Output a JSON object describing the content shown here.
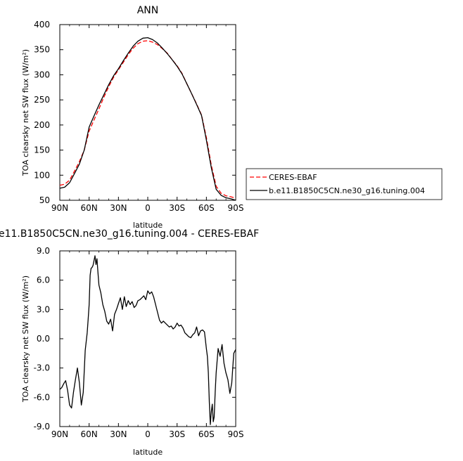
{
  "chart_data": [
    {
      "type": "line",
      "title": "ANN",
      "xlabel": "latitude",
      "ylabel": "TOA clearsky net SW flux (W/m²)",
      "xlim": [
        -90,
        90
      ],
      "ylim": [
        50,
        400
      ],
      "xticks": [
        -90,
        -60,
        -30,
        0,
        30,
        60,
        90
      ],
      "xtick_labels": [
        "90N",
        "60N",
        "30N",
        "0",
        "30S",
        "60S",
        "90S"
      ],
      "yticks": [
        50,
        100,
        150,
        200,
        250,
        300,
        350,
        400
      ],
      "ytick_labels": [
        "50",
        "100",
        "150",
        "200",
        "250",
        "300",
        "350",
        "400"
      ],
      "legend_position": "outside-right",
      "series": [
        {
          "name": "CERES-EBAF",
          "color": "#ff0000",
          "dash": true,
          "x": [
            -90,
            -85,
            -80,
            -75,
            -70,
            -65,
            -60,
            -55,
            -50,
            -45,
            -40,
            -35,
            -30,
            -25,
            -20,
            -15,
            -10,
            -5,
            0,
            5,
            10,
            15,
            20,
            25,
            30,
            35,
            40,
            45,
            50,
            55,
            60,
            65,
            70,
            75,
            80,
            85,
            90
          ],
          "y": [
            80,
            82,
            90,
            108,
            127,
            150,
            188,
            210,
            232,
            255,
            276,
            295,
            310,
            325,
            340,
            353,
            362,
            367,
            368,
            365,
            360,
            352,
            343,
            330,
            318,
            303,
            282,
            262,
            242,
            220,
            175,
            120,
            78,
            64,
            59,
            57,
            54
          ]
        },
        {
          "name": "b.e11.B1850C5CN.ne30_g16.tuning.004",
          "color": "#000000",
          "dash": false,
          "x": [
            -90,
            -85,
            -80,
            -75,
            -70,
            -65,
            -60,
            -55,
            -50,
            -45,
            -40,
            -35,
            -30,
            -25,
            -20,
            -15,
            -10,
            -5,
            0,
            5,
            10,
            15,
            20,
            25,
            30,
            35,
            40,
            45,
            50,
            55,
            60,
            65,
            70,
            75,
            80,
            85,
            90
          ],
          "y": [
            74,
            76,
            85,
            103,
            122,
            150,
            196,
            218,
            240,
            260,
            280,
            298,
            312,
            328,
            343,
            357,
            367,
            373,
            374,
            370,
            363,
            353,
            342,
            330,
            317,
            302,
            282,
            262,
            241,
            219,
            170,
            115,
            72,
            60,
            55,
            53,
            50
          ]
        }
      ]
    },
    {
      "type": "line",
      "title": "e11.B1850C5CN.ne30_g16.tuning.004 - CERES-EBAF",
      "xlabel": "latitude",
      "ylabel": "TOA clearsky net SW flux (W/m²)",
      "xlim": [
        -90,
        90
      ],
      "ylim": [
        -9,
        9
      ],
      "xticks": [
        -90,
        -60,
        -30,
        0,
        30,
        60,
        90
      ],
      "xtick_labels": [
        "90N",
        "60N",
        "30N",
        "0",
        "30S",
        "60S",
        "90S"
      ],
      "yticks": [
        -9,
        -6,
        -3,
        0,
        3,
        6,
        9
      ],
      "ytick_labels": [
        "-9.0",
        "-6.0",
        "-3.0",
        "0.0",
        "3.0",
        "6.0",
        "9.0"
      ],
      "series": [
        {
          "color": "#000000",
          "x": [
            -90,
            -88,
            -86,
            -84,
            -82,
            -80,
            -78,
            -76,
            -74,
            -72,
            -70,
            -68,
            -66,
            -64,
            -62,
            -61,
            -60,
            -59,
            -58,
            -57,
            -56,
            -55,
            -54,
            -53,
            -52,
            -51,
            -50,
            -48,
            -46,
            -44,
            -42,
            -40,
            -38,
            -36,
            -34,
            -32,
            -30,
            -28,
            -26,
            -24,
            -22,
            -20,
            -18,
            -16,
            -14,
            -12,
            -10,
            -8,
            -6,
            -4,
            -2,
            0,
            2,
            4,
            6,
            8,
            10,
            12,
            14,
            16,
            18,
            20,
            22,
            24,
            26,
            28,
            30,
            32,
            34,
            36,
            38,
            40,
            42,
            44,
            46,
            48,
            50,
            52,
            54,
            56,
            58,
            60,
            61,
            62,
            63,
            64,
            65,
            66,
            67,
            68,
            69,
            70,
            72,
            74,
            76,
            78,
            80,
            82,
            84,
            86,
            88,
            90
          ],
          "y": [
            -5.2,
            -5.0,
            -4.6,
            -4.3,
            -5.3,
            -6.8,
            -7.1,
            -5.5,
            -4.2,
            -3.0,
            -4.5,
            -6.8,
            -5.5,
            -1.2,
            0.6,
            2.0,
            3.5,
            6.5,
            7.2,
            7.3,
            7.5,
            8.0,
            8.5,
            7.6,
            8.2,
            6.8,
            5.5,
            4.7,
            3.5,
            2.8,
            1.8,
            1.5,
            2.0,
            0.8,
            2.5,
            3.0,
            3.6,
            4.2,
            3.0,
            4.3,
            3.3,
            3.9,
            3.5,
            3.8,
            3.2,
            3.4,
            3.9,
            4.0,
            4.2,
            4.4,
            4.0,
            4.9,
            4.6,
            4.8,
            4.3,
            3.5,
            2.7,
            1.9,
            1.6,
            1.8,
            1.6,
            1.4,
            1.2,
            1.3,
            1.0,
            1.2,
            1.6,
            1.3,
            1.4,
            1.1,
            0.6,
            0.4,
            0.2,
            0.1,
            0.4,
            0.6,
            1.2,
            0.3,
            0.8,
            0.9,
            0.7,
            -1.0,
            -1.8,
            -3.5,
            -6.5,
            -8.8,
            -7.5,
            -6.7,
            -8.5,
            -8.0,
            -5.5,
            -3.5,
            -1.0,
            -1.8,
            -0.6,
            -2.5,
            -3.5,
            -4.2,
            -5.6,
            -4.5,
            -1.5,
            -1.1
          ]
        }
      ]
    }
  ]
}
